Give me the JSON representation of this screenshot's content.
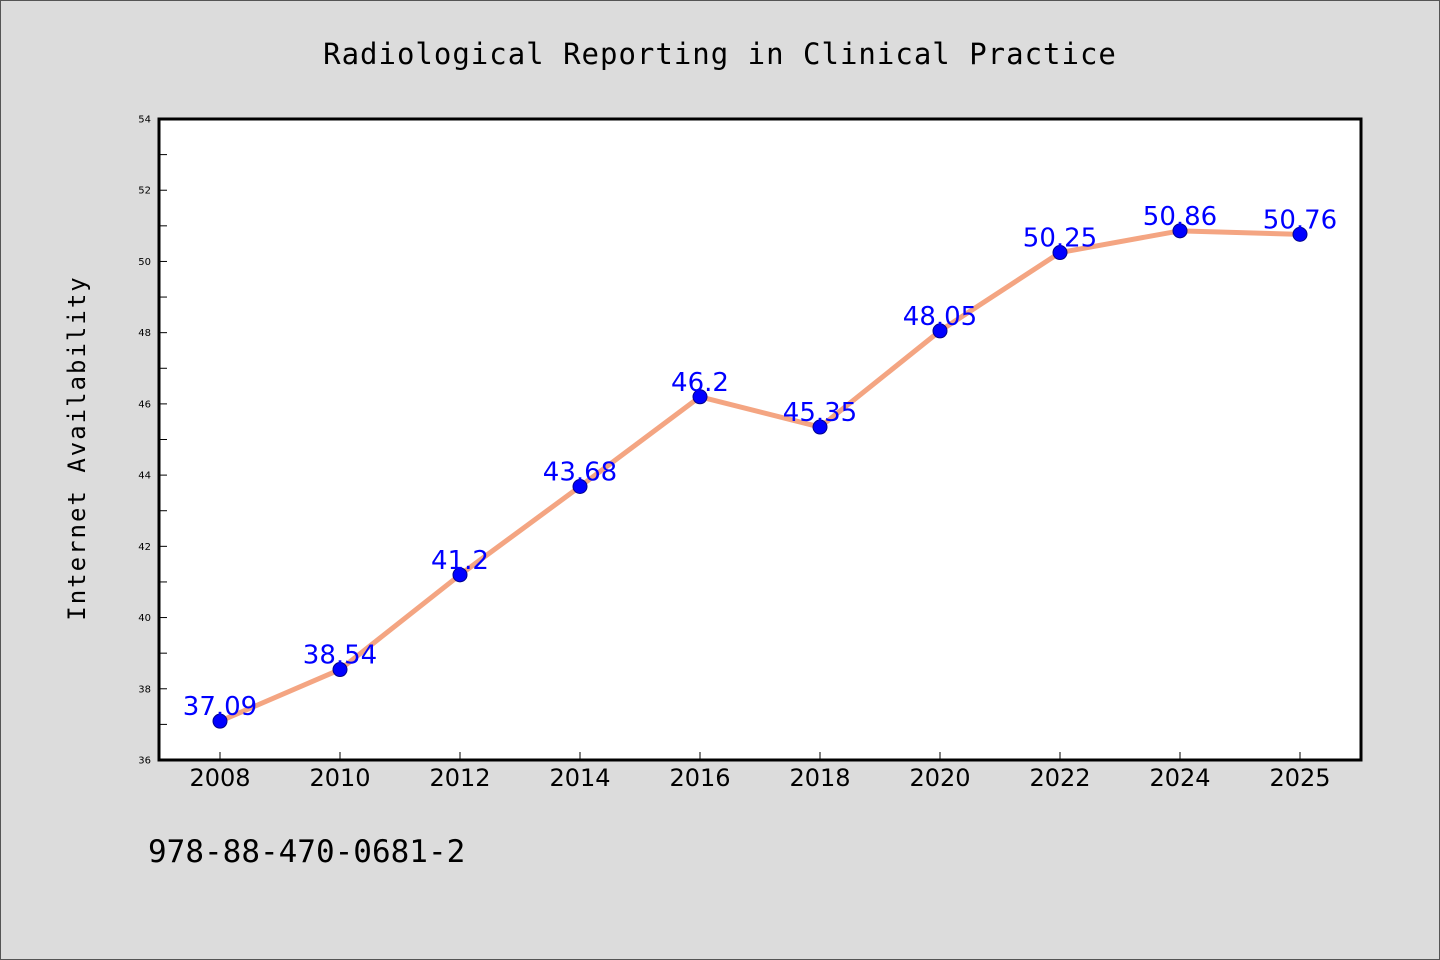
{
  "chart_data": {
    "type": "line",
    "title": "Radiological Reporting in Clinical Practice",
    "xlabel": "",
    "ylabel": "Internet Availability",
    "categories": [
      "2008",
      "2010",
      "2012",
      "2014",
      "2016",
      "2018",
      "2020",
      "2022",
      "2024",
      "2025"
    ],
    "series": [
      {
        "values": [
          37.09,
          38.54,
          41.2,
          43.68,
          46.2,
          45.35,
          48.05,
          50.25,
          50.86,
          50.76
        ],
        "labels": [
          "37.09",
          "38.54",
          "41.2",
          "43.68",
          "46.2",
          "45.35",
          "48.05",
          "50.25",
          "50.86",
          "50.76"
        ]
      }
    ],
    "ylim": [
      36,
      54
    ],
    "yticks": [
      "36",
      "38",
      "40",
      "42",
      "44",
      "46",
      "48",
      "50",
      "52",
      "54"
    ],
    "grid": false,
    "legend": "none",
    "colors": {
      "line": "#f4a582",
      "marker": "#0000ff",
      "label": "#0000ff",
      "background": "#dcdcdc",
      "plot_area": "#ffffff"
    }
  },
  "footer": {
    "isbn": "978-88-470-0681-2"
  }
}
